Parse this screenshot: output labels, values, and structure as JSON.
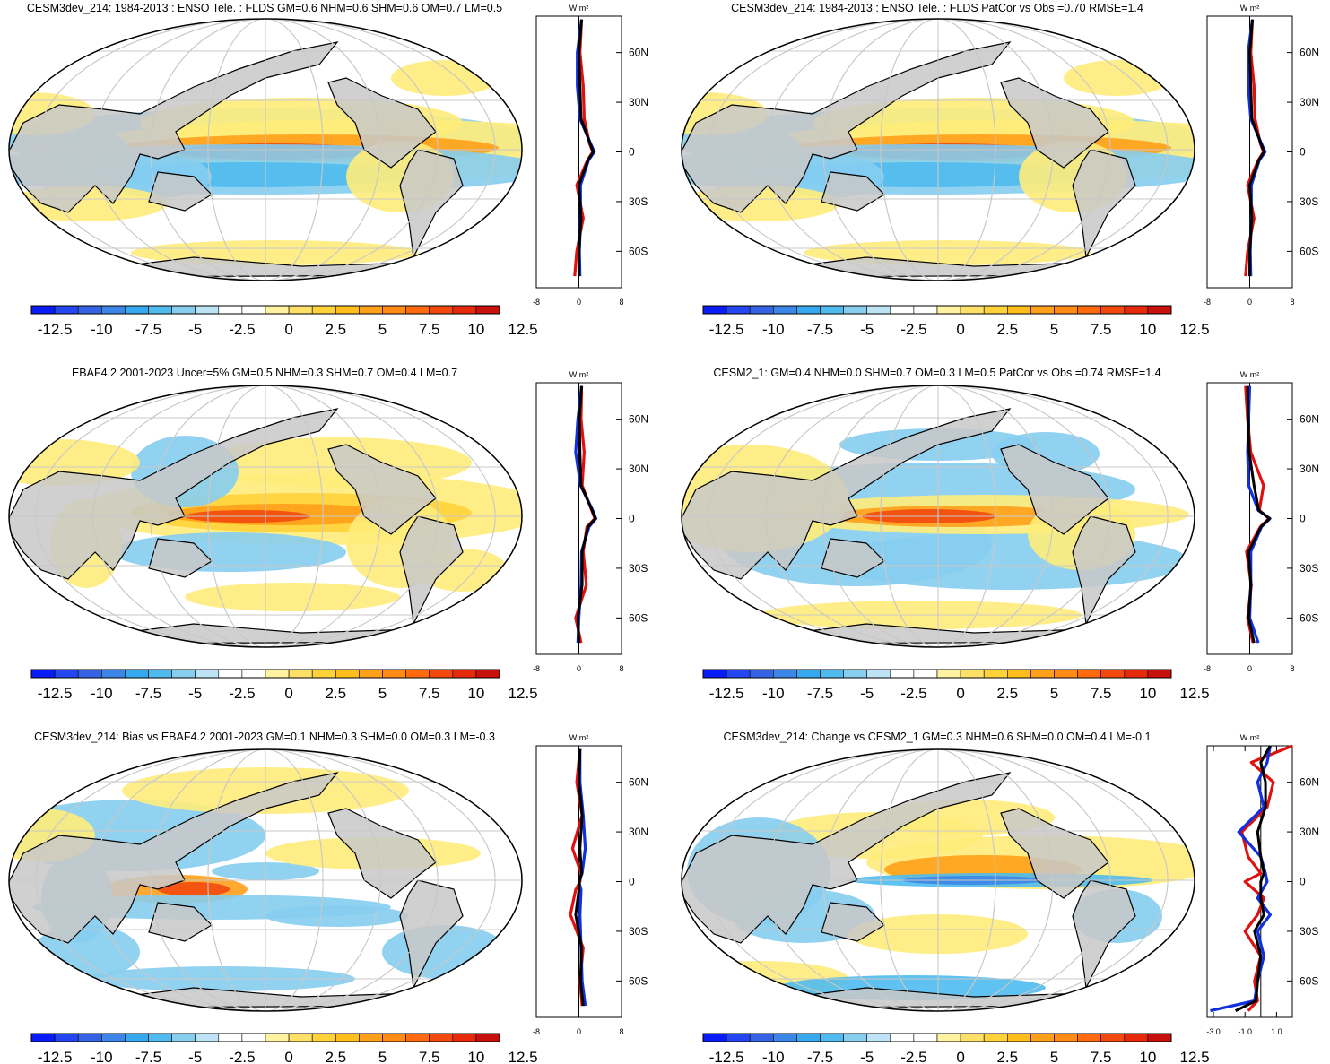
{
  "figure": {
    "colorbar": {
      "labels": [
        "-12.5",
        "-10",
        "-7.5",
        "-5",
        "-2.5",
        "0",
        "2.5",
        "5",
        "7.5",
        "10",
        "12.5"
      ],
      "colors": [
        "#0a1cf5",
        "#2446f0",
        "#3662e6",
        "#3c86e8",
        "#36a8f0",
        "#4fbbee",
        "#86cdf0",
        "#bde3f5",
        "#ffffff",
        "#ffffff",
        "#fff2a0",
        "#ffe066",
        "#ffd23a",
        "#ffbe1e",
        "#ffa01a",
        "#ff8a14",
        "#ff6a10",
        "#f24a0e",
        "#e52a0c",
        "#c8100c"
      ]
    },
    "map_colors": {
      "land": "#c8c8c8",
      "ocean": "#ffffff",
      "graticule": "#c8c8c8",
      "coast": "#000000"
    },
    "profile_colors": {
      "model": "#e01010",
      "obs": "#1030e0",
      "reference": "#000000"
    },
    "profile_units": "W m²"
  },
  "chart_data": [
    {
      "type": "heatmap",
      "title": "CESM3dev_214: 1984-2013 : ENSO Tele. : FLDS GM=0.6 NHM=0.6 SHM=0.6 OM=0.7 LM=0.5",
      "profile": {
        "xticks": [
          "-8",
          "0",
          "8"
        ],
        "yticks": [
          "60N",
          "30N",
          "0",
          "30S",
          "60S"
        ],
        "xlim": [
          -8,
          8
        ],
        "lat": [
          80,
          60,
          40,
          20,
          5,
          0,
          -5,
          -20,
          -40,
          -60,
          -75
        ],
        "series": [
          {
            "values": [
              0.5,
              0.2,
              0.8,
              1.0,
              2.0,
              2.6,
              1.6,
              -0.4,
              0.8,
              -0.4,
              -0.8
            ]
          },
          {
            "values": [
              0.5,
              -0.3,
              -0.3,
              0.2,
              2.2,
              2.9,
              1.8,
              0.3,
              0.3,
              0.1,
              0.2
            ]
          },
          {
            "values": [
              0.5,
              0.0,
              0.2,
              0.4,
              2.1,
              2.7,
              1.7,
              0.0,
              0.4,
              0.0,
              0.0
            ]
          }
        ]
      }
    },
    {
      "type": "heatmap",
      "title": "CESM3dev_214: 1984-2013 : ENSO Tele. : FLDS PatCor vs Obs =0.70 RMSE=1.4",
      "profile": {
        "xticks": [
          "-8",
          "0",
          "8"
        ],
        "yticks": [
          "60N",
          "30N",
          "0",
          "30S",
          "60S"
        ],
        "xlim": [
          -8,
          8
        ],
        "lat": [
          80,
          60,
          40,
          20,
          5,
          0,
          -5,
          -20,
          -40,
          -60,
          -75
        ],
        "series": [
          {
            "values": [
              0.5,
              0.2,
              0.8,
              1.0,
              2.0,
              2.6,
              1.6,
              -0.4,
              0.8,
              -0.4,
              -0.8
            ]
          },
          {
            "values": [
              0.5,
              -0.3,
              -0.3,
              0.2,
              2.2,
              2.9,
              1.8,
              0.3,
              0.3,
              0.1,
              0.2
            ]
          },
          {
            "values": [
              0.5,
              0.0,
              0.2,
              0.4,
              2.1,
              2.7,
              1.7,
              0.0,
              0.4,
              0.0,
              0.0
            ]
          }
        ]
      }
    },
    {
      "type": "heatmap",
      "title": "EBAF4.2 2001-2023 Uncer=5% GM=0.5 NHM=0.3 SHM=0.7 OM=0.4 LM=0.7",
      "profile": {
        "xticks": [
          "-8",
          "0",
          "8"
        ],
        "yticks": [
          "60N",
          "30N",
          "0",
          "30S",
          "60S"
        ],
        "xlim": [
          -8,
          8
        ],
        "lat": [
          80,
          60,
          40,
          20,
          5,
          0,
          -5,
          -20,
          -40,
          -60,
          -75
        ],
        "series": [
          {
            "values": [
              0.5,
              0.4,
              1.0,
              0.6,
              2.4,
              3.0,
              1.5,
              0.8,
              1.4,
              -0.6,
              0.4
            ]
          },
          {
            "values": [
              0.5,
              -0.2,
              -0.6,
              0.3,
              2.6,
              3.2,
              1.9,
              0.5,
              0.4,
              0.0,
              -0.2
            ]
          },
          {
            "values": [
              0.5,
              0.1,
              0.2,
              0.4,
              2.5,
              3.1,
              1.7,
              0.6,
              0.6,
              -0.2,
              0.0
            ]
          }
        ]
      }
    },
    {
      "type": "heatmap",
      "title": "CESM2_1: GM=0.4 NHM=0.0 SHM=0.7 OM=0.3 LM=0.5 PatCor vs Obs =0.74 RMSE=1.4",
      "profile": {
        "xticks": [
          "-8",
          "0",
          "8"
        ],
        "yticks": [
          "60N",
          "30N",
          "0",
          "30S",
          "60S"
        ],
        "xlim": [
          -8,
          8
        ],
        "lat": [
          80,
          60,
          40,
          20,
          5,
          0,
          -5,
          -20,
          -40,
          -60,
          -75
        ],
        "series": [
          {
            "values": [
              -0.8,
              -0.4,
              0.2,
              2.6,
              1.8,
              3.6,
              2.0,
              -0.6,
              0.3,
              -0.4,
              0.6
            ]
          },
          {
            "values": [
              0.0,
              -0.2,
              -0.4,
              -0.2,
              1.6,
              3.8,
              2.2,
              0.2,
              0.2,
              0.0,
              1.6
            ]
          },
          {
            "values": [
              -0.4,
              -0.3,
              -0.1,
              0.8,
              1.7,
              3.7,
              2.1,
              -0.2,
              0.2,
              -0.2,
              0.8
            ]
          }
        ]
      }
    },
    {
      "type": "heatmap",
      "title": "CESM3dev_214: Bias vs EBAF4.2 2001-2023 GM=0.1 NHM=0.3 SHM=0.0 OM=0.3 LM=-0.3",
      "profile": {
        "xticks": [
          "-8",
          "0",
          "8"
        ],
        "yticks": [
          "60N",
          "30N",
          "0",
          "30S",
          "60S"
        ],
        "xlim": [
          -8,
          8
        ],
        "lat": [
          80,
          60,
          40,
          20,
          5,
          0,
          -5,
          -20,
          -40,
          -60,
          -75
        ],
        "series": [
          {
            "values": [
              0.2,
              -0.4,
              0.6,
              -1.2,
              0.4,
              0.2,
              -0.6,
              -1.6,
              0.8,
              0.2,
              0.6
            ]
          },
          {
            "values": [
              0.2,
              0.2,
              0.8,
              1.2,
              0.6,
              0.0,
              0.4,
              0.2,
              0.4,
              0.6,
              1.2
            ]
          },
          {
            "values": [
              0.2,
              0.0,
              0.6,
              0.2,
              0.5,
              0.1,
              0.0,
              -0.6,
              0.5,
              0.3,
              0.8
            ]
          }
        ]
      }
    },
    {
      "type": "heatmap",
      "title": "CESM3dev_214: Change vs CESM2_1 GM=0.3 NHM=0.6 SHM=0.0 OM=0.4 LM=-0.1",
      "profile": {
        "xticks": [
          "-3.0",
          "-1.0",
          "1.0"
        ],
        "yticks": [
          "60N",
          "30N",
          "0",
          "30S",
          "60S"
        ],
        "xlim": [
          -3.4,
          2.0
        ],
        "lat": [
          82,
          72,
          60,
          45,
          30,
          15,
          5,
          0,
          -10,
          -20,
          -30,
          -45,
          -60,
          -72,
          -78
        ],
        "series": [
          {
            "values": [
              2.0,
              -0.6,
              0.8,
              0.4,
              -1.2,
              -0.8,
              0.0,
              -1.0,
              0.2,
              -0.2,
              -1.0,
              0.0,
              -0.4,
              -0.2,
              -0.8
            ]
          },
          {
            "values": [
              0.6,
              0.4,
              -0.2,
              0.2,
              -1.4,
              0.0,
              0.3,
              0.4,
              -0.2,
              0.6,
              -0.2,
              0.2,
              -0.2,
              -0.4,
              -3.2
            ]
          },
          {
            "values": [
              0.6,
              0.0,
              0.3,
              0.3,
              -0.2,
              0.0,
              0.2,
              0.0,
              0.0,
              0.2,
              -0.4,
              0.0,
              -0.2,
              -0.3,
              -1.6
            ]
          }
        ]
      }
    }
  ]
}
